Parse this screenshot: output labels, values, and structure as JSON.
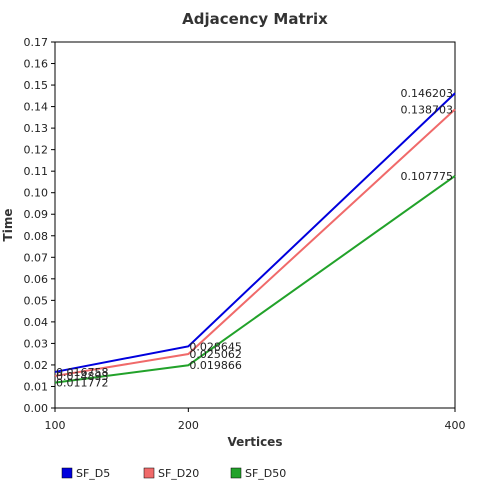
{
  "chart_data": {
    "type": "line",
    "title": "Adjacency Matrix",
    "xlabel": "Vertices",
    "ylabel": "Time",
    "x": [
      100,
      200,
      400
    ],
    "xticks": [
      "100",
      "200",
      "400"
    ],
    "xlim": [
      100,
      400
    ],
    "ylim": [
      0,
      0.17
    ],
    "yticks": [
      "0.00",
      "0.01",
      "0.02",
      "0.03",
      "0.04",
      "0.05",
      "0.06",
      "0.07",
      "0.08",
      "0.09",
      "0.10",
      "0.11",
      "0.12",
      "0.13",
      "0.14",
      "0.15",
      "0.16",
      "0.17"
    ],
    "grid": false,
    "legend_position": "bottom-left",
    "series": [
      {
        "name": "SF_D5",
        "color": "#0000dd",
        "values": [
          0.016758,
          0.028645,
          0.146203
        ],
        "labels": [
          "0.016758",
          "0.028645",
          "0.146203"
        ]
      },
      {
        "name": "SF_D20",
        "color": "#f06a6a",
        "values": [
          0.014893,
          0.025062,
          0.138703
        ],
        "labels": [
          "0.014893",
          "0.025062",
          "0.138703"
        ]
      },
      {
        "name": "SF_D50",
        "color": "#22a22a",
        "values": [
          0.011772,
          0.019866,
          0.107775
        ],
        "labels": [
          "0.011772",
          "0.019866",
          "0.107775"
        ]
      }
    ]
  }
}
